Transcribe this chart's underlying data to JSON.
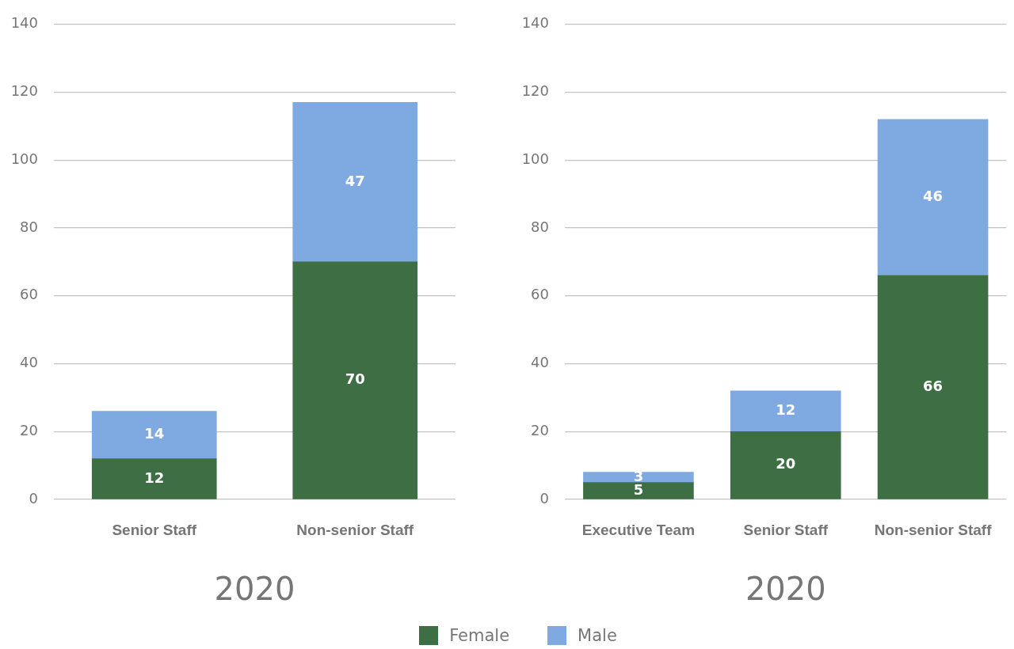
{
  "chart_data": [
    {
      "type": "bar",
      "categories": [
        "Senior Staff",
        "Non-senior Staff"
      ],
      "series": [
        {
          "name": "Female",
          "color": "#3e6f44",
          "values": [
            12,
            70
          ]
        },
        {
          "name": "Male",
          "color": "#7faae1",
          "values": [
            14,
            47
          ]
        }
      ],
      "stacked": true,
      "xlabel": "2020",
      "ylim": [
        0,
        140
      ],
      "yticks": [
        0,
        20,
        40,
        60,
        80,
        100,
        120,
        140
      ],
      "grid": "y",
      "data_labels": true,
      "legend": "bottom"
    },
    {
      "type": "bar",
      "categories": [
        "Executive Team",
        "Senior Staff",
        "Non-senior Staff"
      ],
      "series": [
        {
          "name": "Female",
          "color": "#3e6f44",
          "values": [
            5,
            20,
            66
          ]
        },
        {
          "name": "Male",
          "color": "#7faae1",
          "values": [
            3,
            12,
            46
          ]
        }
      ],
      "stacked": true,
      "xlabel": "2020",
      "ylim": [
        0,
        140
      ],
      "yticks": [
        0,
        20,
        40,
        60,
        80,
        100,
        120,
        140
      ],
      "grid": "y",
      "data_labels": true,
      "legend": "bottom"
    }
  ]
}
